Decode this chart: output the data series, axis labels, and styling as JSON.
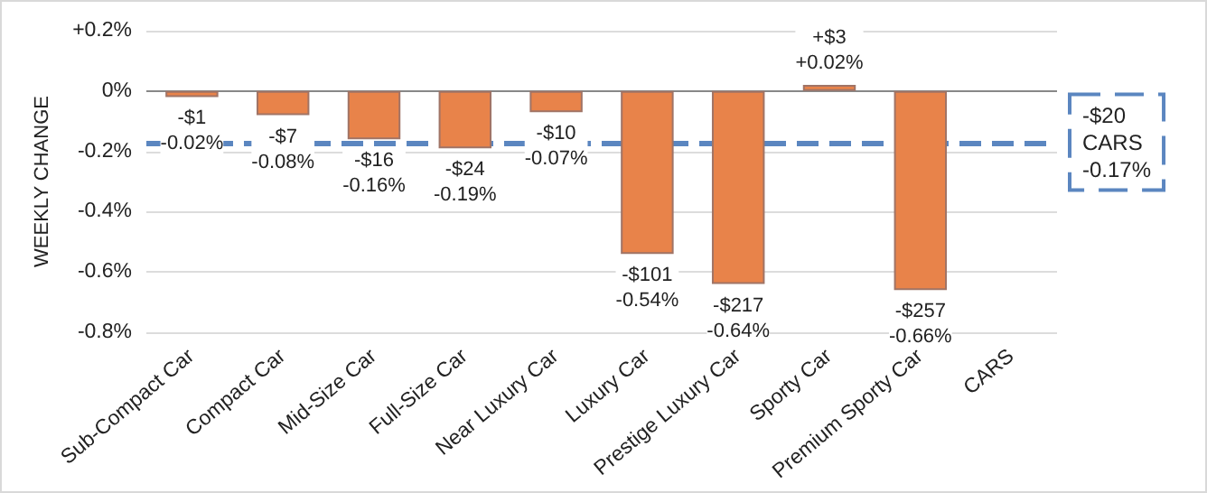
{
  "chart_data": {
    "type": "bar",
    "ylabel": "WEEKLY CHANGE",
    "categories": [
      "Sub-Compact Car",
      "Compact Car",
      "Mid-Size Car",
      "Full-Size Car",
      "Near Luxury Car",
      "Luxury Car",
      "Prestige Luxury Car",
      "Sporty Car",
      "Premium Sporty Car",
      "CARS"
    ],
    "values": [
      -0.02,
      -0.08,
      -0.16,
      -0.19,
      -0.07,
      -0.54,
      -0.64,
      0.02,
      -0.66,
      null
    ],
    "value_labels": [
      "-$1\n-0.02%",
      "-$7\n-0.08%",
      "-$16\n-0.16%",
      "-$24\n-0.19%",
      "-$10\n-0.07%",
      "-$101\n-0.54%",
      "-$217\n-0.64%",
      "+$3\n+0.02%",
      "-$257\n-0.66%",
      null
    ],
    "color": "#e8834a",
    "ylim": [
      -0.8,
      0.2
    ],
    "yticks": [
      {
        "value": 0.2,
        "label": "+0.2%"
      },
      {
        "value": 0,
        "label": "0%"
      },
      {
        "value": -0.2,
        "label": "-0.2%"
      },
      {
        "value": -0.4,
        "label": "-0.4%"
      },
      {
        "value": -0.6,
        "label": "-0.6%"
      },
      {
        "value": -0.8,
        "label": "-0.8%"
      }
    ],
    "grid": "y",
    "ref_lines": [
      {
        "axis": "y",
        "value": -0.17,
        "label": "-$20\nCARS\n-0.17%",
        "color": "#5b86c0",
        "line_style": "dashed"
      }
    ]
  }
}
